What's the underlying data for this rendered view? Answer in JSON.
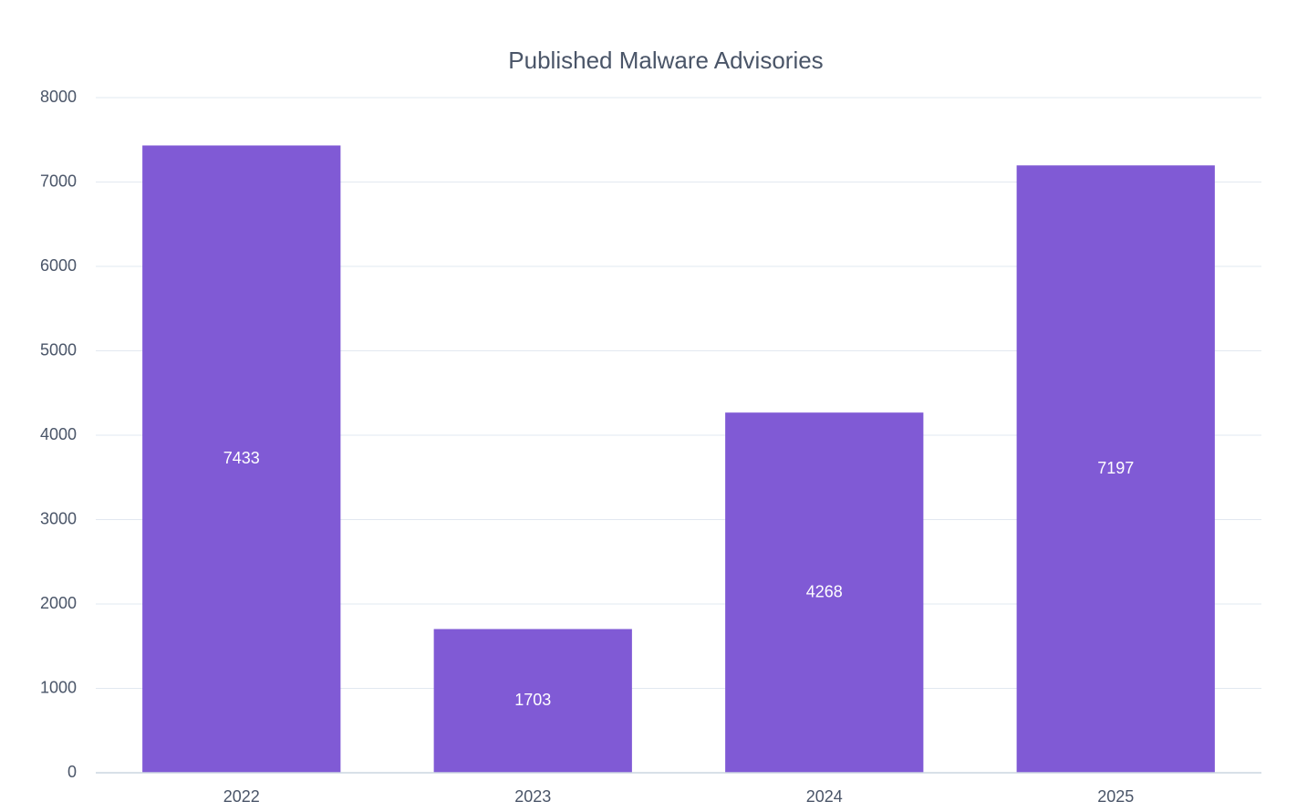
{
  "chart_data": {
    "type": "bar",
    "title": "Published Malware Advisories",
    "categories": [
      "2022",
      "2023",
      "2024",
      "2025"
    ],
    "values": [
      7433,
      1703,
      4268,
      7197
    ],
    "color": "#805ad5",
    "ylim": [
      0,
      8000
    ],
    "yticks": [
      0,
      1000,
      2000,
      3000,
      4000,
      5000,
      6000,
      7000,
      8000
    ],
    "grid": true
  }
}
